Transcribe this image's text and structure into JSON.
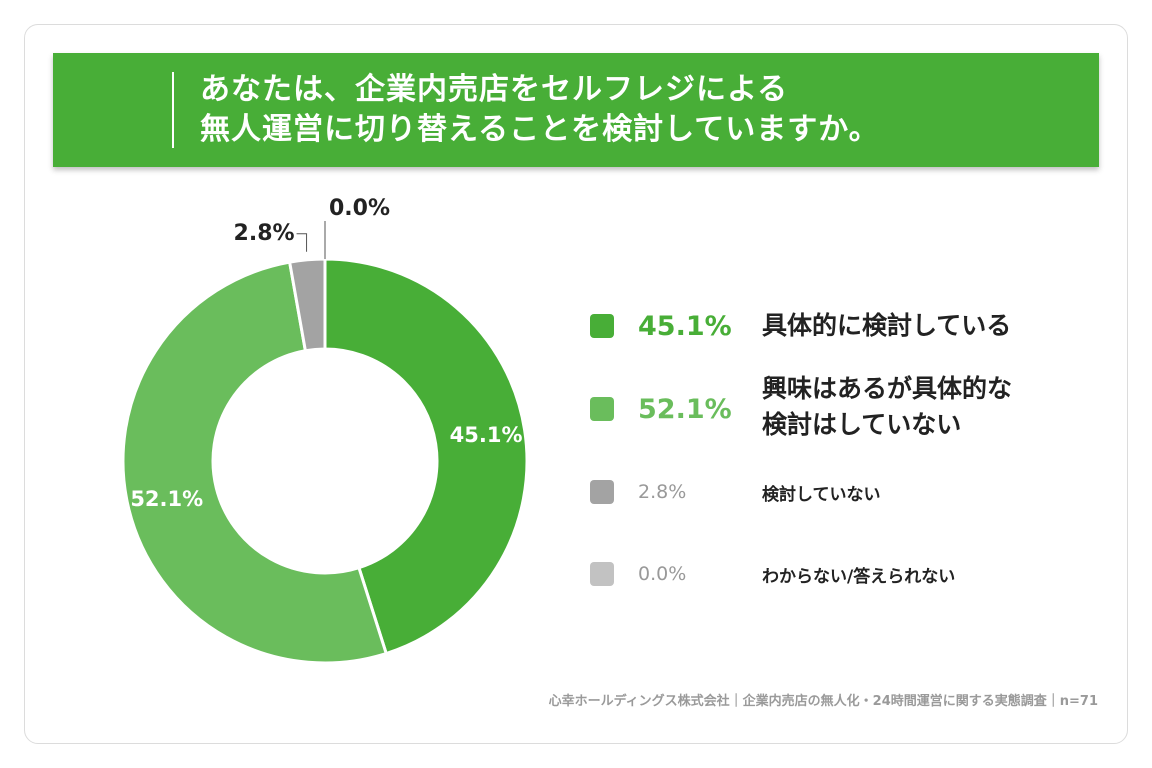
{
  "title": {
    "line1": "あなたは、企業内売店をセルフレジによる",
    "line2": "無人運営に切り替えることを検討していますか。"
  },
  "colors": {
    "banner": "#48ae37",
    "dark_green": "#48ae37",
    "light_green": "#6abd5c",
    "gray_dark": "#a3a3a3",
    "gray_light": "#c2c2c2"
  },
  "chart_data": {
    "type": "pie",
    "donut": true,
    "categories": [
      "具体的に検討している",
      "興味はあるが具体的な検討はしていない",
      "検討していない",
      "わからない/答えられない"
    ],
    "values": [
      45.1,
      52.1,
      2.8,
      0.0
    ],
    "value_labels": [
      "45.1%",
      "52.1%",
      "2.8%",
      "0.0%"
    ],
    "legend_placement": "right"
  },
  "legend": [
    {
      "pct": "45.1%",
      "label_lines": [
        "具体的に検討している"
      ]
    },
    {
      "pct": "52.1%",
      "label_lines": [
        "興味はあるが具体的な",
        "検討はしていない"
      ]
    },
    {
      "pct": "2.8%",
      "label_lines": [
        "検討していない"
      ]
    },
    {
      "pct": "0.0%",
      "label_lines": [
        "わからない/答えられない"
      ]
    }
  ],
  "footer": "心幸ホールディングス株式会社｜企業内売店の無人化・24時間運営に関する実態調査｜n=71"
}
